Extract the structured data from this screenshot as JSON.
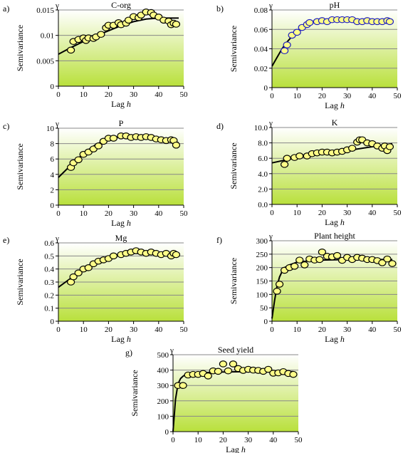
{
  "figure": {
    "point_fill": "#ffff88",
    "point_fill_blue_border": "#2020c0",
    "gradient_top": "#ffffff",
    "gradient_bottom": "#b9e03c",
    "gridline_color": "#888888"
  },
  "chart_data": [
    {
      "panel": "a)",
      "title": "C-org",
      "type": "scatter",
      "xlabel_prefix": "Lag ",
      "xlabel_var": "h",
      "ylabel": "Semivariance",
      "gamma": "γ",
      "xlim": [
        0,
        50
      ],
      "ylim": [
        0,
        0.015
      ],
      "xticks": [
        "0",
        "10",
        "20",
        "30",
        "40",
        "50"
      ],
      "yticks": [
        "0",
        "0.005",
        "0.01",
        "0.015"
      ],
      "point_border": "#000000",
      "points": {
        "x": [
          5,
          6,
          8,
          10,
          11,
          12,
          14,
          15,
          17,
          19,
          20,
          22,
          24,
          25,
          27,
          28,
          30,
          32,
          33,
          35,
          37,
          38,
          40,
          42,
          44,
          45,
          46,
          47
        ],
        "y": [
          0.0071,
          0.0088,
          0.0092,
          0.0095,
          0.009,
          0.0095,
          0.0094,
          0.0097,
          0.0102,
          0.0115,
          0.012,
          0.012,
          0.0125,
          0.0121,
          0.0124,
          0.013,
          0.0137,
          0.0135,
          0.014,
          0.0146,
          0.0145,
          0.014,
          0.0136,
          0.013,
          0.0128,
          0.0121,
          0.0124,
          0.0122
        ]
      },
      "model": {
        "x": [
          0,
          5,
          10,
          15,
          20,
          25,
          30,
          35,
          40,
          45,
          48
        ],
        "y": [
          0.0063,
          0.0076,
          0.0088,
          0.0099,
          0.0109,
          0.0119,
          0.0127,
          0.0132,
          0.0134,
          0.0134,
          0.0134
        ]
      }
    },
    {
      "panel": "b)",
      "title": "pH",
      "type": "scatter",
      "xlabel_prefix": "Lag ",
      "xlabel_var": "h",
      "ylabel": "Semivariance",
      "gamma": "γ",
      "xlim": [
        0,
        50
      ],
      "ylim": [
        0,
        0.08
      ],
      "xticks": [
        "0",
        "10",
        "20",
        "30",
        "40",
        "50"
      ],
      "yticks": [
        "0",
        "0.02",
        "0.04",
        "0.06",
        "0.08"
      ],
      "point_border": "#2020c0",
      "points": {
        "x": [
          5,
          6,
          8,
          10,
          12,
          14,
          15,
          18,
          20,
          22,
          24,
          26,
          28,
          30,
          32,
          34,
          36,
          38,
          40,
          42,
          44,
          46,
          47
        ],
        "y": [
          0.038,
          0.044,
          0.054,
          0.057,
          0.062,
          0.065,
          0.067,
          0.068,
          0.069,
          0.068,
          0.07,
          0.07,
          0.07,
          0.07,
          0.07,
          0.068,
          0.068,
          0.069,
          0.068,
          0.068,
          0.068,
          0.069,
          0.068
        ]
      },
      "model": {
        "x": [
          0,
          2,
          4,
          6,
          8,
          10,
          12,
          14,
          16,
          18,
          20,
          25,
          30,
          40,
          48
        ],
        "y": [
          0.022,
          0.031,
          0.04,
          0.047,
          0.053,
          0.058,
          0.062,
          0.065,
          0.067,
          0.068,
          0.069,
          0.069,
          0.069,
          0.069,
          0.069
        ]
      }
    },
    {
      "panel": "c)",
      "title": "P",
      "type": "scatter",
      "xlabel_prefix": "Lag ",
      "xlabel_var": "h",
      "ylabel": "Semivariance",
      "gamma": "γ",
      "xlim": [
        0,
        50
      ],
      "ylim": [
        0,
        10
      ],
      "xticks": [
        "0",
        "10",
        "20",
        "30",
        "40",
        "50"
      ],
      "yticks": [
        "0",
        "2",
        "4",
        "6",
        "8",
        "10"
      ],
      "point_border": "#000000",
      "points": {
        "x": [
          5,
          6,
          8,
          10,
          12,
          14,
          16,
          18,
          20,
          22,
          25,
          27,
          29,
          31,
          33,
          35,
          37,
          39,
          41,
          43,
          45,
          46,
          47
        ],
        "y": [
          4.9,
          5.5,
          5.9,
          6.6,
          6.9,
          7.3,
          7.7,
          8.3,
          8.7,
          8.7,
          9.0,
          9.0,
          8.8,
          8.9,
          8.8,
          8.9,
          8.8,
          8.6,
          8.5,
          8.4,
          8.5,
          8.4,
          7.8
        ]
      },
      "model": {
        "x": [
          0,
          5,
          10,
          15,
          20,
          25,
          30,
          35,
          40,
          45,
          48
        ],
        "y": [
          3.6,
          5.2,
          6.7,
          7.9,
          8.6,
          8.9,
          8.9,
          8.8,
          8.6,
          8.3,
          8.1
        ]
      }
    },
    {
      "panel": "d)",
      "title": "K",
      "type": "scatter",
      "xlabel_prefix": "Lag ",
      "xlabel_var": "h",
      "ylabel": "Semivariance",
      "gamma": "γ",
      "xlim": [
        0,
        50
      ],
      "ylim": [
        0,
        10
      ],
      "xticks": [
        "0",
        "10",
        "20",
        "30",
        "40",
        "50"
      ],
      "yticks": [
        "0.0",
        "2.0",
        "4.0",
        "6.0",
        "8.0",
        "10.0"
      ],
      "point_border": "#000000",
      "points": {
        "x": [
          5,
          6,
          9,
          11,
          14,
          16,
          18,
          20,
          22,
          24,
          26,
          28,
          30,
          32,
          34,
          35,
          36,
          38,
          40,
          42,
          44,
          45,
          46,
          47
        ],
        "y": [
          5.2,
          6.0,
          6.1,
          6.3,
          6.3,
          6.6,
          6.7,
          6.8,
          6.8,
          6.7,
          6.8,
          6.9,
          7.1,
          7.3,
          8.1,
          8.4,
          8.4,
          8.0,
          7.9,
          7.6,
          7.3,
          7.6,
          7.0,
          7.5
        ]
      },
      "model": {
        "x": [
          0,
          10,
          20,
          30,
          40,
          48
        ],
        "y": [
          5.4,
          6.1,
          6.6,
          7.0,
          7.5,
          7.9
        ]
      }
    },
    {
      "panel": "e)",
      "title": "Mg",
      "type": "scatter",
      "xlabel_prefix": "Lag ",
      "xlabel_var": "h",
      "ylabel": "Semivariance",
      "gamma": "γ",
      "xlim": [
        0,
        50
      ],
      "ylim": [
        0,
        0.6
      ],
      "xticks": [
        "0",
        "10",
        "20",
        "30",
        "40",
        "50"
      ],
      "yticks": [
        "0",
        "0.1",
        "0.2",
        "0.3",
        "0.4",
        "0.5",
        "0.6"
      ],
      "point_border": "#000000",
      "points": {
        "x": [
          5,
          6,
          8,
          10,
          12,
          14,
          16,
          18,
          20,
          22,
          25,
          27,
          29,
          31,
          33,
          35,
          37,
          39,
          41,
          43,
          45,
          46,
          47
        ],
        "y": [
          0.3,
          0.34,
          0.37,
          0.4,
          0.41,
          0.44,
          0.46,
          0.47,
          0.48,
          0.5,
          0.51,
          0.52,
          0.53,
          0.54,
          0.53,
          0.52,
          0.53,
          0.52,
          0.51,
          0.52,
          0.5,
          0.52,
          0.51
        ]
      },
      "model": {
        "x": [
          0,
          5,
          10,
          15,
          20,
          25,
          30,
          35,
          40,
          45,
          48
        ],
        "y": [
          0.26,
          0.33,
          0.4,
          0.45,
          0.49,
          0.51,
          0.52,
          0.52,
          0.52,
          0.52,
          0.52
        ]
      }
    },
    {
      "panel": "f)",
      "title": "Plant height",
      "type": "scatter",
      "xlabel_prefix": "Lag ",
      "xlabel_var": "h",
      "ylabel": "Semivariance",
      "gamma": "γ",
      "xlim": [
        0,
        50
      ],
      "ylim": [
        0,
        300
      ],
      "xticks": [
        "0",
        "10",
        "20",
        "30",
        "40",
        "50"
      ],
      "yticks": [
        "0",
        "50",
        "100",
        "150",
        "200",
        "250",
        "300"
      ],
      "point_border": "#000000",
      "points": {
        "x": [
          2,
          3,
          5,
          7,
          9,
          11,
          13,
          15,
          17,
          19,
          20,
          22,
          24,
          26,
          28,
          30,
          32,
          34,
          36,
          38,
          40,
          42,
          44,
          46,
          48
        ],
        "y": [
          112,
          138,
          190,
          200,
          205,
          228,
          210,
          232,
          228,
          230,
          258,
          242,
          240,
          245,
          227,
          238,
          230,
          238,
          235,
          230,
          230,
          226,
          218,
          232,
          215
        ]
      },
      "model": {
        "x": [
          0,
          1,
          2,
          3,
          4,
          5,
          7,
          10,
          15,
          20,
          30,
          40,
          48
        ],
        "y": [
          10,
          75,
          130,
          165,
          185,
          200,
          210,
          220,
          225,
          228,
          230,
          230,
          230
        ]
      }
    },
    {
      "panel": "g)",
      "title": "Seed yield",
      "type": "scatter",
      "xlabel_prefix": "Lag ",
      "xlabel_var": "h",
      "ylabel": "Semivariance",
      "gamma": "γ",
      "xlim": [
        0,
        50
      ],
      "ylim": [
        0,
        500
      ],
      "xticks": [
        "0",
        "10",
        "20",
        "30",
        "40",
        "50"
      ],
      "yticks": [
        "0",
        "100",
        "200",
        "300",
        "400",
        "500"
      ],
      "point_border": "#000000",
      "points": {
        "x": [
          2,
          4,
          6,
          8,
          10,
          12,
          14,
          16,
          18,
          20,
          22,
          24,
          26,
          28,
          30,
          32,
          34,
          36,
          38,
          40,
          42,
          44,
          46,
          48
        ],
        "y": [
          300,
          300,
          368,
          372,
          372,
          378,
          362,
          395,
          392,
          440,
          395,
          440,
          410,
          398,
          405,
          400,
          398,
          392,
          405,
          380,
          382,
          390,
          378,
          372
        ]
      },
      "model": {
        "x": [
          0,
          1,
          2,
          3,
          4,
          5,
          7,
          10,
          15,
          20,
          30,
          40,
          48
        ],
        "y": [
          0,
          210,
          310,
          345,
          360,
          370,
          378,
          382,
          385,
          388,
          390,
          390,
          390
        ]
      }
    }
  ]
}
